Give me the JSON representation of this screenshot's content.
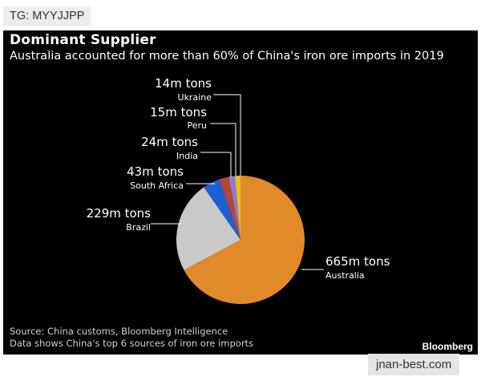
{
  "watermarks": {
    "tg": "TG: MYYJJPP",
    "site": "jnan-best.com"
  },
  "footer": {
    "source": "Source: China customs, Bloomberg Intelligence",
    "data_note": "Data shows China's top 6 sources of iron ore imports",
    "brand": "Bloomberg"
  },
  "chart_data": {
    "type": "pie",
    "title": "Dominant Supplier",
    "subtitle": "Australia accounted for more than 60% of China's iron ore imports in 2019",
    "unit": "m tons",
    "slices": [
      {
        "name": "Australia",
        "value": 665,
        "value_label": "665m tons",
        "color": "#e08a2a"
      },
      {
        "name": "Brazil",
        "value": 229,
        "value_label": "229m tons",
        "color": "#c9c9c9"
      },
      {
        "name": "South Africa",
        "value": 43,
        "value_label": "43m tons",
        "color": "#1f5fd6"
      },
      {
        "name": "India",
        "value": 24,
        "value_label": "24m tons",
        "color": "#b8462f"
      },
      {
        "name": "Peru",
        "value": 15,
        "value_label": "15m tons",
        "color": "#8f7ad8"
      },
      {
        "name": "Ukraine",
        "value": 14,
        "value_label": "14m tons",
        "color": "#e8c21a"
      }
    ]
  }
}
